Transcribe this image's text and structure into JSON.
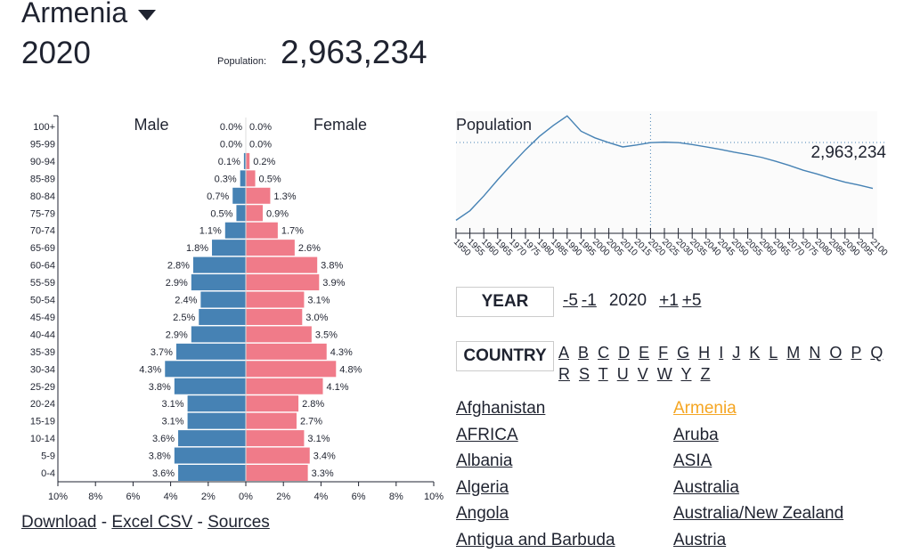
{
  "header": {
    "country": "Armenia",
    "year": "2020",
    "population_label": "Population:",
    "population_value": "2,963,234"
  },
  "pyramid": {
    "male_label": "Male",
    "female_label": "Female",
    "x_ticks": [
      "10%",
      "8%",
      "6%",
      "4%",
      "2%",
      "0%",
      "2%",
      "4%",
      "6%",
      "8%",
      "10%"
    ],
    "age_groups": [
      "100+",
      "95-99",
      "90-94",
      "85-89",
      "80-84",
      "75-79",
      "70-74",
      "65-69",
      "60-64",
      "55-59",
      "50-54",
      "45-49",
      "40-44",
      "35-39",
      "30-34",
      "25-29",
      "20-24",
      "15-19",
      "10-14",
      "5-9",
      "0-4"
    ],
    "male": [
      0.0,
      0.0,
      0.1,
      0.3,
      0.7,
      0.5,
      1.1,
      1.8,
      2.8,
      2.9,
      2.4,
      2.5,
      2.9,
      3.7,
      4.3,
      3.8,
      3.1,
      3.1,
      3.6,
      3.8,
      3.6
    ],
    "female": [
      0.0,
      0.0,
      0.2,
      0.5,
      1.3,
      0.9,
      1.7,
      2.6,
      3.8,
      3.9,
      3.1,
      3.0,
      3.5,
      4.3,
      4.8,
      4.1,
      2.8,
      2.7,
      3.1,
      3.4,
      3.3
    ],
    "colors": {
      "male": "#4682b4",
      "female": "#f07b89"
    }
  },
  "chart_data": [
    {
      "type": "bar",
      "title": "",
      "series": [
        {
          "name": "Male",
          "values": [
            0.0,
            0.0,
            0.1,
            0.3,
            0.7,
            0.5,
            1.1,
            1.8,
            2.8,
            2.9,
            2.4,
            2.5,
            2.9,
            3.7,
            4.3,
            3.8,
            3.1,
            3.1,
            3.6,
            3.8,
            3.6
          ]
        },
        {
          "name": "Female",
          "values": [
            0.0,
            0.0,
            0.2,
            0.5,
            1.3,
            0.9,
            1.7,
            2.6,
            3.8,
            3.9,
            3.1,
            3.0,
            3.5,
            4.3,
            4.8,
            4.1,
            2.8,
            2.7,
            3.1,
            3.4,
            3.3
          ]
        }
      ],
      "categories": [
        "100+",
        "95-99",
        "90-94",
        "85-89",
        "80-84",
        "75-79",
        "70-74",
        "65-69",
        "60-64",
        "55-59",
        "50-54",
        "45-49",
        "40-44",
        "35-39",
        "30-34",
        "25-29",
        "20-24",
        "15-19",
        "10-14",
        "5-9",
        "0-4"
      ],
      "xlim": [
        -10,
        10
      ]
    },
    {
      "type": "line",
      "title": "Population",
      "x": [
        1950,
        1955,
        1960,
        1965,
        1970,
        1975,
        1980,
        1985,
        1990,
        1995,
        2000,
        2005,
        2010,
        2015,
        2020,
        2025,
        2030,
        2035,
        2040,
        2045,
        2050,
        2055,
        2060,
        2065,
        2070,
        2075,
        2080,
        2085,
        2090,
        2095,
        2100
      ],
      "values": [
        1.33,
        1.53,
        1.84,
        2.18,
        2.5,
        2.81,
        3.09,
        3.32,
        3.52,
        3.2,
        3.06,
        2.96,
        2.87,
        2.91,
        2.96,
        2.97,
        2.96,
        2.92,
        2.87,
        2.82,
        2.76,
        2.71,
        2.65,
        2.57,
        2.48,
        2.38,
        2.3,
        2.21,
        2.13,
        2.07,
        2.0
      ],
      "unit": "millions",
      "highlight_year": 2020,
      "highlight_label": "2,963,234",
      "xlim": [
        1950,
        2100
      ]
    }
  ],
  "year_nav": {
    "label": "YEAR",
    "minus5": "-5",
    "minus1": "-1",
    "current": "2020",
    "plus1": "+1",
    "plus5": "+5"
  },
  "country_nav": {
    "label": "COUNTRY",
    "letters": [
      "A",
      "B",
      "C",
      "D",
      "E",
      "F",
      "G",
      "H",
      "I",
      "J",
      "K",
      "L",
      "M",
      "N",
      "O",
      "P",
      "Q",
      "R",
      "S",
      "T",
      "U",
      "V",
      "W",
      "Y",
      "Z"
    ]
  },
  "countries_col1": [
    "Afghanistan",
    "AFRICA",
    "Albania",
    "Algeria",
    "Angola",
    "Antigua and Barbuda"
  ],
  "countries_col2": [
    "Armenia",
    "Aruba",
    "ASIA",
    "Australia",
    "Australia/New Zealand",
    "Austria"
  ],
  "selected_color": "#f5a623",
  "footer": {
    "download": "Download",
    "sep1": "-",
    "excel": "Excel CSV",
    "sep2": "-",
    "sources": "Sources"
  }
}
